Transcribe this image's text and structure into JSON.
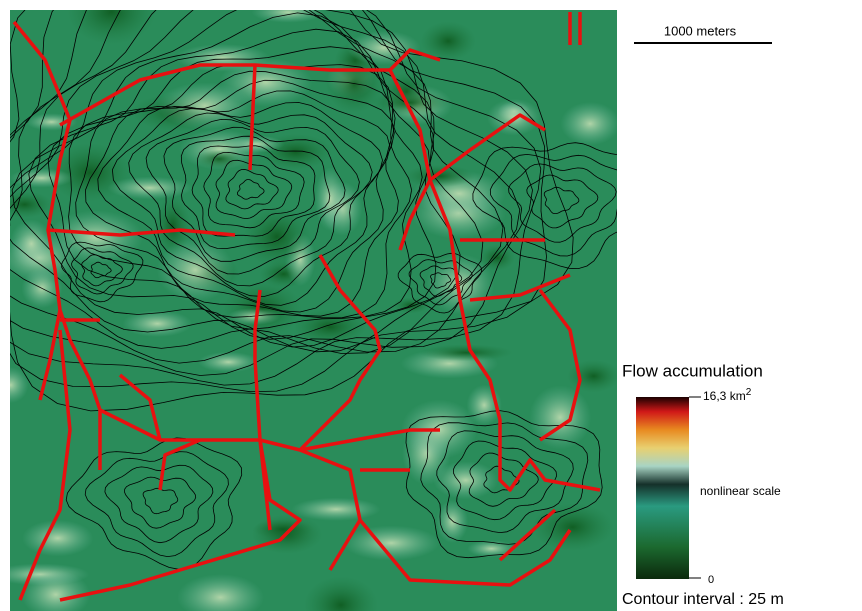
{
  "scale_bar": {
    "label": "1000 meters"
  },
  "legend": {
    "title": "Flow accumulation",
    "max_label": "16,3 km",
    "max_label_exponent": "2",
    "middle_label": "nonlinear scale",
    "min_label": "0"
  },
  "note": "Contour interval : 25 m"
}
